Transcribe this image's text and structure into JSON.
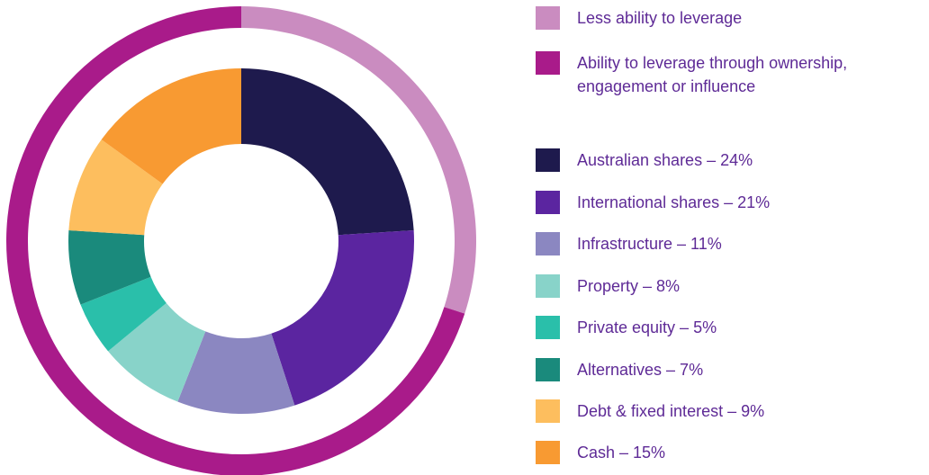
{
  "chart_data": [
    {
      "type": "donut",
      "categories": [
        "Less ability to leverage",
        "Ability to leverage through ownership, engagement or influence"
      ],
      "values": [
        30,
        70
      ],
      "colors": [
        "#ca8cc0",
        "#a91b8a"
      ]
    },
    {
      "type": "donut",
      "categories": [
        "Australian shares – 24%",
        "International shares – 21%",
        "Infrastructure – 11%",
        "Property – 8%",
        "Private equity – 5%",
        "Alternatives – 7%",
        "Debt & fixed interest – 9%",
        "Cash – 15%"
      ],
      "values": [
        24,
        21,
        11,
        8,
        5,
        7,
        9,
        15
      ],
      "colors": [
        "#1e1a4d",
        "#5b25a0",
        "#8b87c1",
        "#88d3c9",
        "#2abfaa",
        "#1a8a7c",
        "#fdbe5e",
        "#f89a32"
      ]
    }
  ]
}
